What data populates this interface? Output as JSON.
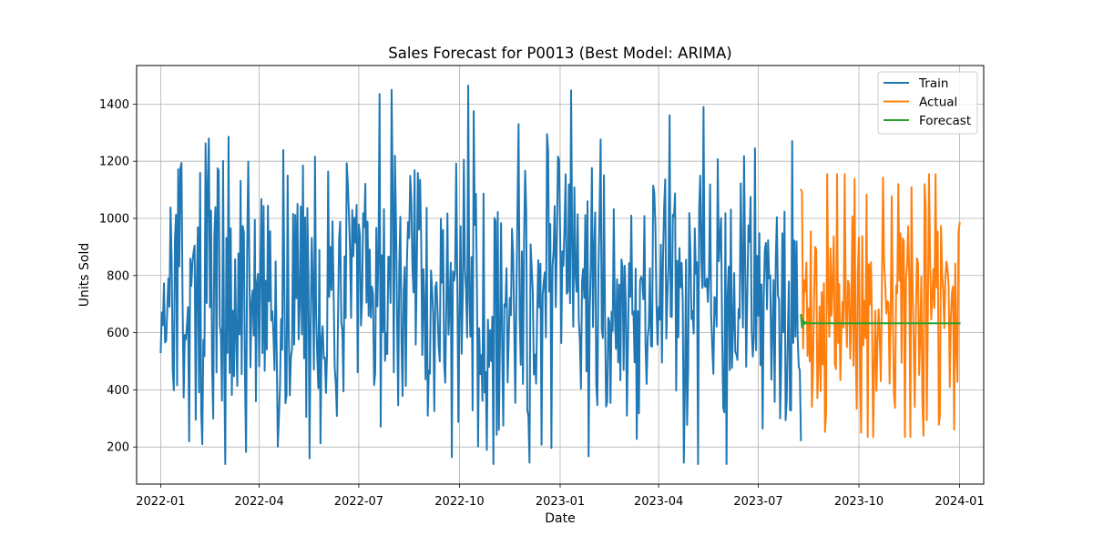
{
  "chart_data": {
    "type": "line",
    "title": "Sales Forecast for P0013 (Best Model: ARIMA)",
    "xlabel": "Date",
    "ylabel": "Units Sold",
    "grid": true,
    "legend_position": "top-right",
    "xlim": [
      "2021-12-10",
      "2024-01-23"
    ],
    "ylim": [
      70,
      1535
    ],
    "x_ticks": [
      "2022-01",
      "2022-04",
      "2022-07",
      "2022-10",
      "2023-01",
      "2023-04",
      "2023-07",
      "2023-10",
      "2024-01"
    ],
    "y_ticks": [
      200,
      400,
      600,
      800,
      1000,
      1200,
      1400
    ],
    "series": [
      {
        "name": "Train",
        "color": "#1f77b4",
        "start": "2022-01-01",
        "end": "2023-08-09",
        "mean": 720,
        "std": 265,
        "min": 140,
        "max": 1465,
        "seed": 13,
        "peaks": [
          {
            "date": "2022-02-14",
            "value": 1280
          },
          {
            "date": "2022-07-20",
            "value": 1435
          },
          {
            "date": "2022-07-31",
            "value": 1450
          },
          {
            "date": "2022-10-09",
            "value": 1465
          },
          {
            "date": "2022-11-24",
            "value": 1330
          },
          {
            "date": "2022-12-20",
            "value": 1295
          },
          {
            "date": "2023-05-12",
            "value": 1390
          },
          {
            "date": "2023-06-28",
            "value": 1245
          },
          {
            "date": "2022-05-17",
            "value": 160
          },
          {
            "date": "2022-12-04",
            "value": 145
          },
          {
            "date": "2023-04-24",
            "value": 145
          },
          {
            "date": "2023-05-07",
            "value": 140
          },
          {
            "date": "2022-02-08",
            "value": 210
          }
        ]
      },
      {
        "name": "Actual",
        "color": "#ff7f0e",
        "start": "2023-08-09",
        "end": "2024-01-01",
        "mean": 680,
        "std": 240,
        "min": 235,
        "max": 1155,
        "seed": 71,
        "peaks": [
          {
            "date": "2023-08-09",
            "value": 1100
          },
          {
            "date": "2023-09-02",
            "value": 1155
          },
          {
            "date": "2023-11-06",
            "value": 1120
          },
          {
            "date": "2023-11-30",
            "value": 1120
          },
          {
            "date": "2023-10-03",
            "value": 250
          },
          {
            "date": "2023-11-12",
            "value": 235
          }
        ]
      },
      {
        "name": "Forecast",
        "color": "#2ca02c",
        "points": [
          {
            "date": "2023-08-09",
            "value": 662
          },
          {
            "date": "2023-08-10",
            "value": 618
          },
          {
            "date": "2023-08-11",
            "value": 645
          },
          {
            "date": "2023-08-12",
            "value": 630
          },
          {
            "date": "2023-08-13",
            "value": 637
          },
          {
            "date": "2023-08-14",
            "value": 632
          },
          {
            "date": "2023-08-16",
            "value": 633
          },
          {
            "date": "2024-01-01",
            "value": 633
          }
        ]
      }
    ]
  }
}
